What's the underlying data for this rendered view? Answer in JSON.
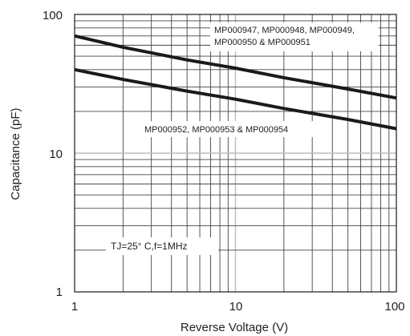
{
  "chart_data": {
    "type": "line",
    "xscale": "log",
    "yscale": "log",
    "xlim": [
      1,
      100
    ],
    "ylim": [
      1,
      100
    ],
    "xlabel": "Reverse Voltage (V)",
    "ylabel": "Capacitance (pF)",
    "grid": true,
    "xticks": [
      "1",
      "10",
      "100"
    ],
    "yticks": [
      "1",
      "10",
      "100"
    ],
    "series": [
      {
        "name": "MP000947, MP000948, MP000949, MP000950 & MP000951",
        "x": [
          1,
          2,
          5,
          10,
          20,
          50,
          100
        ],
        "y": [
          70,
          58,
          47,
          41,
          35,
          29,
          25
        ]
      },
      {
        "name": "MP000952, MP000953 & MP000954",
        "x": [
          1,
          2,
          5,
          10,
          20,
          50,
          100
        ],
        "y": [
          40,
          34,
          28,
          24.5,
          21,
          17.5,
          15
        ]
      }
    ],
    "annotations": {
      "series1_line1": "MP000947, MP000948, MP000949,",
      "series1_line2": "MP000950 & MP000951",
      "series2": "MP000952, MP000953 & MP000954",
      "conditions": "TJ=25° C,f=1MHz"
    }
  },
  "colors": {
    "grid": "#444444",
    "grid_emphasis": "#bbbbbb",
    "curve": "#1a1a1a",
    "text": "#222222"
  }
}
